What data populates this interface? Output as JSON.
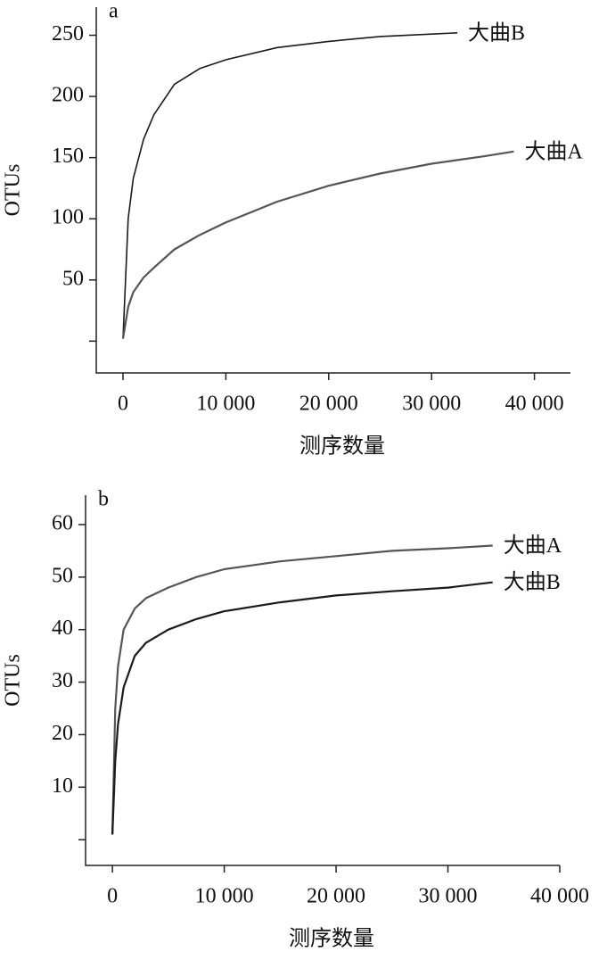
{
  "chart_data": [
    {
      "type": "line",
      "title": "a",
      "xlabel": "测序数量",
      "ylabel": "OTUs",
      "x": [
        0,
        500,
        1000,
        2000,
        3000,
        5000,
        7500,
        10000,
        15000,
        20000,
        25000,
        30000,
        32500,
        35000,
        38000
      ],
      "series": [
        {
          "name": "大曲B",
          "color": "#1a1a1a",
          "values": [
            2,
            100,
            133,
            165,
            185,
            210,
            223,
            230,
            240,
            245,
            249,
            251,
            252,
            null,
            null
          ]
        },
        {
          "name": "大曲A",
          "color": "#555555",
          "values": [
            2,
            28,
            40,
            52,
            60,
            75,
            87,
            97,
            114,
            127,
            137,
            145,
            148,
            151,
            155
          ]
        }
      ],
      "xlim": [
        -2600,
        43500
      ],
      "ylim": [
        -26,
        273
      ],
      "xticks": [
        0,
        {
          "value": 10000,
          "label": "10 000"
        },
        {
          "value": 20000,
          "label": "20 000"
        },
        {
          "value": 30000,
          "label": "30 000"
        },
        {
          "value": 40000,
          "label": "40 000"
        }
      ],
      "yticks": [
        {
          "value": 0,
          "label": null
        },
        50,
        100,
        150,
        200,
        250
      ]
    },
    {
      "type": "line",
      "title": "b",
      "xlabel": "测序数量",
      "ylabel": "OTUs",
      "x": [
        0,
        250,
        500,
        1000,
        2000,
        3000,
        5000,
        7500,
        10000,
        15000,
        20000,
        25000,
        30000,
        34000
      ],
      "series": [
        {
          "name": "大曲A",
          "color": "#555555",
          "values": [
            1,
            25,
            33,
            40,
            44,
            46,
            48,
            50,
            51.5,
            53,
            54,
            55,
            55.5,
            56
          ]
        },
        {
          "name": "大曲B",
          "color": "#1a1a1a",
          "values": [
            1,
            15,
            22,
            29,
            35,
            37.5,
            40,
            42,
            43.5,
            45.2,
            46.5,
            47.3,
            48,
            49
          ]
        }
      ],
      "xlim": [
        -2400,
        40000
      ],
      "ylim": [
        -4.9,
        65.6
      ],
      "xticks": [
        0,
        {
          "value": 10000,
          "label": "10 000"
        },
        {
          "value": 20000,
          "label": "20 000"
        },
        {
          "value": 30000,
          "label": "30 000"
        },
        {
          "value": 40000,
          "label": "40 000"
        }
      ],
      "yticks": [
        {
          "value": 0,
          "label": null
        },
        10,
        20,
        30,
        40,
        50,
        60
      ]
    }
  ]
}
